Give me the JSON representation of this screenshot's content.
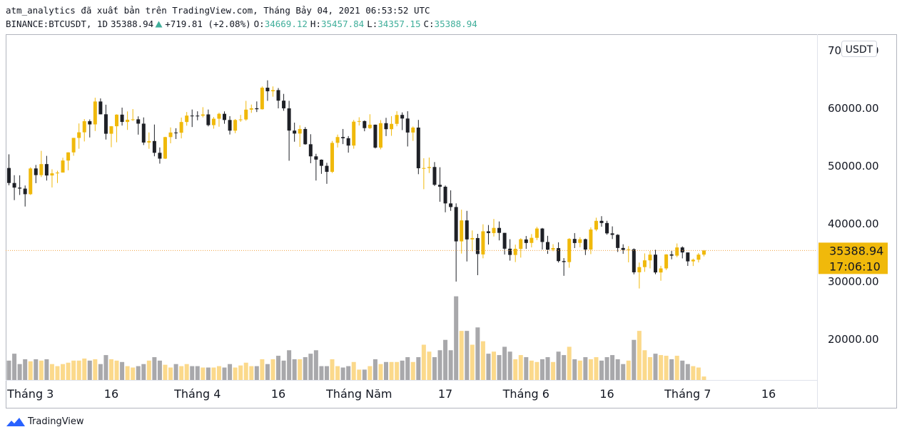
{
  "header": {
    "title": "atm_analytics đã xuất bản trên TradingView.com, Tháng Bảy 04, 2021 06:53:52 UTC",
    "symbol": "BINANCE:BTCUSDT, 1D",
    "change": "+719.81 (+2.08%)",
    "o_label": "O:",
    "h_label": "H:",
    "l_label": "L:",
    "c_label": "C:"
  },
  "footer": {
    "brand": "TradingView"
  },
  "chart_data": {
    "type": "candlestick",
    "currency": "USDT",
    "countdown": "17:06:10",
    "up_color": "#f0b90b",
    "down_color": "#1e2026",
    "volume_up_color": "#fbd98b",
    "volume_down_color": "#a8a8ab",
    "price_line_color": "#f0a040",
    "xlim": [
      -4.6,
      146
    ],
    "ylim": [
      12960,
      72840
    ],
    "vlim": [
      0,
      500000
    ],
    "grid": false,
    "xticks": [
      {
        "value": 0,
        "label": "Tháng 3"
      },
      {
        "value": 15,
        "label": "16"
      },
      {
        "value": 31,
        "label": "Tháng 4"
      },
      {
        "value": 46,
        "label": "16"
      },
      {
        "value": 61,
        "label": "Tháng Năm"
      },
      {
        "value": 77,
        "label": "17"
      },
      {
        "value": 92,
        "label": "Tháng 6"
      },
      {
        "value": 107,
        "label": "16"
      },
      {
        "value": 122,
        "label": "Tháng 7"
      },
      {
        "value": 137,
        "label": "16"
      }
    ],
    "yticks": [
      {
        "value": 20000,
        "label": "20000.00"
      },
      {
        "value": 30000,
        "label": "30000.00"
      },
      {
        "value": 40000,
        "label": "40000.00"
      },
      {
        "value": 50000,
        "label": "50000.00"
      },
      {
        "value": 60000,
        "label": "60000.00"
      },
      {
        "value": 70000,
        "label": "70000.00"
      }
    ],
    "x": [
      -4,
      -3,
      -2,
      -1,
      0,
      1,
      2,
      3,
      4,
      5,
      6,
      7,
      8,
      9,
      10,
      11,
      12,
      13,
      14,
      15,
      16,
      17,
      18,
      19,
      20,
      21,
      22,
      23,
      24,
      25,
      26,
      27,
      28,
      29,
      30,
      31,
      32,
      33,
      34,
      35,
      36,
      37,
      38,
      39,
      40,
      41,
      42,
      43,
      44,
      45,
      46,
      47,
      48,
      49,
      50,
      51,
      52,
      53,
      54,
      55,
      56,
      57,
      58,
      59,
      60,
      61,
      62,
      63,
      64,
      65,
      66,
      67,
      68,
      69,
      70,
      71,
      72,
      73,
      74,
      75,
      76,
      77,
      78,
      79,
      80,
      81,
      82,
      83,
      84,
      85,
      86,
      87,
      88,
      89,
      90,
      91,
      92,
      93,
      94,
      95,
      96,
      97,
      98,
      99,
      100,
      101,
      102,
      103,
      104,
      105,
      106,
      107,
      108,
      109,
      110,
      111,
      112,
      113,
      114,
      115,
      116,
      117,
      118,
      119,
      120,
      121,
      122,
      123,
      124,
      125
    ],
    "open": [
      49676,
      47073,
      46276,
      46103,
      45134,
      49595,
      48436,
      50349,
      48374,
      48746,
      48882,
      50959,
      52375,
      54874,
      55851,
      57773,
      57221,
      61188,
      58976,
      55605,
      56900,
      58912,
      57641,
      58030,
      58101,
      57351,
      54083,
      54342,
      52304,
      51293,
      55025,
      55817,
      55777,
      57635,
      58746,
      58739,
      58720,
      58951,
      57092,
      58204,
      59054,
      57985,
      56140,
      57987,
      58077,
      59779,
      60016,
      59846,
      63577,
      62959,
      63158,
      61334,
      60006,
      56150,
      55634,
      56425,
      53787,
      51691,
      51110,
      50047,
      49004,
      54030,
      55033,
      54825,
      53555,
      57697,
      57797,
      56578,
      57169,
      53200,
      57436,
      56393,
      57315,
      58866,
      58240,
      55816,
      56670,
      49537,
      49671,
      49844,
      46762,
      46426,
      43538,
      42910,
      36967,
      40596,
      37305,
      37536,
      34700,
      38705,
      38402,
      39295,
      38436,
      35697,
      34608,
      35658,
      37293,
      36694,
      37569,
      39185,
      36851,
      35538,
      35796,
      33556,
      33380,
      37389,
      36697,
      37340,
      35546,
      39021,
      40516,
      40143,
      38349,
      38098,
      35820,
      35483,
      35600,
      31614,
      32509,
      33675,
      34663,
      31576,
      32283,
      34702,
      34494,
      35911,
      35045,
      33502,
      33786,
      34669.12
    ],
    "high": [
      52041,
      48424,
      48394,
      46638,
      49790,
      50200,
      52640,
      51773,
      49448,
      49200,
      51450,
      52402,
      54895,
      57387,
      58150,
      58081,
      61844,
      61724,
      60633,
      56938,
      58974,
      60129,
      59468,
      59880,
      58620,
      58430,
      55830,
      57200,
      53230,
      55073,
      56700,
      56559,
      58405,
      59368,
      59800,
      59490,
      60200,
      59791,
      58500,
      59250,
      59475,
      58650,
      58153,
      58869,
      61300,
      60659,
      61199,
      63800,
      64854,
      63800,
      63520,
      62506,
      61300,
      57526,
      57076,
      56757,
      55521,
      52131,
      51166,
      50567,
      54356,
      55460,
      56428,
      55200,
      58000,
      58458,
      57911,
      58981,
      57200,
      57963,
      58360,
      58650,
      59500,
      59300,
      59500,
      56862,
      58000,
      51367,
      51483,
      50700,
      49800,
      46643,
      45799,
      43546,
      42451,
      42249,
      38856,
      38270,
      39920,
      39791,
      40841,
      40411,
      38437,
      37338,
      36400,
      37499,
      37894,
      38225,
      39476,
      39289,
      37925,
      36480,
      36800,
      34068,
      37534,
      38400,
      37680,
      37440,
      39380,
      41064,
      41330,
      40527,
      39560,
      38202,
      36457,
      36137,
      35750,
      33298,
      34881,
      35298,
      35500,
      32730,
      34749,
      35297,
      36600,
      36100,
      35057,
      33977,
      34945,
      35457.84
    ],
    "low": [
      46674,
      44106,
      45000,
      43000,
      45000,
      47047,
      48100,
      47500,
      46300,
      47070,
      48882,
      49274,
      51789,
      53005,
      54272,
      54962,
      56078,
      58966,
      54600,
      53271,
      54124,
      57023,
      56270,
      57820,
      55450,
      53650,
      53000,
      51700,
      50427,
      51229,
      53950,
      54691,
      54800,
      57000,
      56769,
      57935,
      58428,
      56880,
      56478,
      56817,
      57333,
      55473,
      55700,
      57670,
      57850,
      59217,
      59364,
      59790,
      61301,
      62020,
      60000,
      59580,
      50931,
      54221,
      53329,
      53695,
      50500,
      47500,
      48657,
      46930,
      48800,
      53222,
      53813,
      52330,
      53013,
      57030,
      56035,
      56435,
      53057,
      52900,
      55200,
      55241,
      56900,
      56235,
      53400,
      54370,
      48600,
      46000,
      48799,
      46555,
      43825,
      42001,
      42250,
      30000,
      34850,
      33488,
      35257,
      31111,
      34031,
      36419,
      37800,
      37134,
      34684,
      33632,
      33379,
      34153,
      35666,
      35920,
      37170,
      35555,
      34800,
      35258,
      33300,
      31000,
      32396,
      35800,
      35936,
      34600,
      34757,
      38730,
      39506,
      38116,
      37365,
      35129,
      34803,
      33336,
      31251,
      28805,
      31683,
      32286,
      31275,
      30151,
      32000,
      33862,
      34225,
      34017,
      32711,
      32699,
      33316,
      34357.15
    ],
    "close": [
      47073,
      46276,
      46106,
      45135,
      49587,
      48440,
      50349,
      48374,
      48751,
      48882,
      50971,
      52375,
      54884,
      55851,
      57773,
      57221,
      61188,
      58968,
      55605,
      56900,
      58912,
      57648,
      58030,
      58102,
      57351,
      54083,
      54340,
      52304,
      51293,
      55025,
      55817,
      55777,
      57635,
      58746,
      58740,
      58720,
      58950,
      57094,
      58203,
      59054,
      57985,
      56144,
      57986,
      58079,
      59779,
      60016,
      59852,
      63577,
      62960,
      63160,
      61334,
      60006,
      56150,
      55633,
      56425,
      53787,
      51690,
      51125,
      50047,
      49004,
      54021,
      55033,
      54824,
      53555,
      57697,
      57797,
      56578,
      57169,
      53200,
      57436,
      56393,
      57314,
      58862,
      58240,
      55816,
      56670,
      49631,
      49670,
      49841,
      46762,
      46431,
      43538,
      42909,
      36964,
      40597,
      37305,
      37536,
      34770,
      38705,
      38402,
      39295,
      38436,
      35697,
      34616,
      35678,
      37332,
      36685,
      37575,
      39188,
      36856,
      35520,
      35796,
      33552,
      33380,
      37388,
      36675,
      37331,
      35546,
      39020,
      40516,
      40144,
      38349,
      38092,
      35820,
      35484,
      35600,
      31608,
      32509,
      33678,
      34663,
      31584,
      32283,
      34700,
      34494,
      35911,
      35045,
      33504,
      33786,
      34669,
      35388.94
    ],
    "volume": [
      28000,
      38000,
      23000,
      30000,
      27000,
      30000,
      28000,
      30000,
      23000,
      20000,
      23000,
      25000,
      28000,
      28000,
      31000,
      28000,
      30000,
      23000,
      36000,
      30000,
      28000,
      26000,
      20000,
      18000,
      20000,
      23000,
      28000,
      33000,
      28000,
      22000,
      18000,
      23000,
      20000,
      23000,
      20000,
      20000,
      18000,
      18000,
      18000,
      20000,
      18000,
      23000,
      18000,
      21000,
      25000,
      20000,
      20000,
      30000,
      23000,
      30000,
      35000,
      28000,
      43000,
      30000,
      30000,
      33000,
      38000,
      43000,
      20000,
      20000,
      30000,
      20000,
      18000,
      20000,
      26000,
      15000,
      15000,
      20000,
      30000,
      23000,
      26000,
      26000,
      26000,
      28000,
      33000,
      26000,
      33000,
      51000,
      41000,
      33000,
      43000,
      58000,
      43000,
      121000,
      71000,
      71000,
      51000,
      76000,
      56000,
      38000,
      41000,
      36000,
      48000,
      41000,
      30000,
      36000,
      33000,
      28000,
      26000,
      30000,
      33000,
      26000,
      41000,
      36000,
      48000,
      30000,
      28000,
      33000,
      30000,
      33000,
      28000,
      33000,
      36000,
      30000,
      23000,
      28000,
      58000,
      71000,
      43000,
      33000,
      38000,
      36000,
      35000,
      30000,
      35000,
      28000,
      23000,
      20000,
      18000,
      5000
    ]
  }
}
